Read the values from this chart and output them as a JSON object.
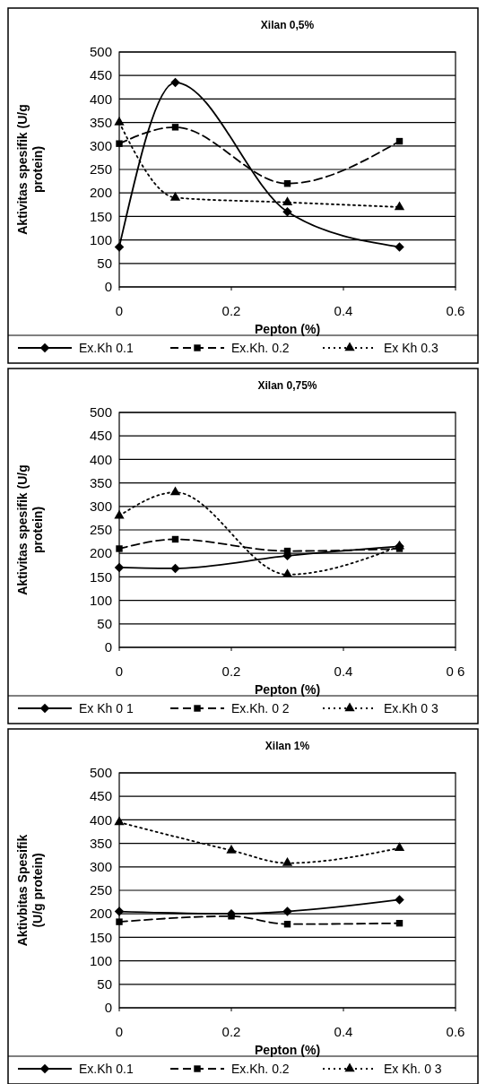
{
  "chart_data": [
    {
      "type": "line",
      "title": "Xilan 0,5%",
      "xlabel": "Pepton (%)",
      "ylabel": "Aktivitas spesifik (U/g protein)",
      "x": [
        0,
        0.1,
        0.3,
        0.5
      ],
      "xlim": [
        0,
        0.6
      ],
      "xticks": [
        0,
        0.2,
        0.4,
        0.6
      ],
      "ylim": [
        0,
        500
      ],
      "yticks": [
        0,
        50,
        100,
        150,
        200,
        250,
        300,
        350,
        400,
        450,
        500
      ],
      "grid": "y",
      "legend": "bottom",
      "series": [
        {
          "name": "Ex.Kh 0.1",
          "color": "#000000",
          "marker": "diamond",
          "line_style": "solid",
          "values": [
            85,
            435,
            160,
            85
          ]
        },
        {
          "name": "Ex.Kh. 0.2",
          "color": "#000000",
          "marker": "square",
          "line_style": "dashed",
          "values": [
            305,
            340,
            220,
            310
          ]
        },
        {
          "name": "Ex Kh  0.3",
          "color": "#000000",
          "marker": "triangle",
          "line_style": "dotted",
          "values": [
            350,
            190,
            180,
            170
          ]
        }
      ]
    },
    {
      "type": "line",
      "title": "Xilan 0,75%",
      "xlabel": "Pepton (%)",
      "ylabel": "Aktivitas spesifik (U/g protein)",
      "x": [
        0,
        0.1,
        0.3,
        0.5
      ],
      "xlim": [
        0,
        0.6
      ],
      "xticks": [
        0,
        0.2,
        0.4,
        {
          "value": 0.6,
          "label": "0 6"
        }
      ],
      "ylim": [
        0,
        500
      ],
      "yticks": [
        0,
        50,
        100,
        150,
        200,
        250,
        300,
        350,
        400,
        450,
        500
      ],
      "grid": "y",
      "legend": "bottom",
      "series": [
        {
          "name": "Ex Kh 0 1",
          "color": "#000000",
          "marker": "diamond",
          "line_style": "solid",
          "values": [
            170,
            168,
            195,
            215
          ]
        },
        {
          "name": "Ex.Kh. 0 2",
          "color": "#000000",
          "marker": "square",
          "line_style": "dashed",
          "values": [
            210,
            230,
            205,
            210
          ]
        },
        {
          "name": "Ex.Kh 0 3",
          "color": "#000000",
          "marker": "triangle",
          "line_style": "dotted",
          "values": [
            280,
            330,
            155,
            215
          ]
        }
      ]
    },
    {
      "type": "line",
      "title": "Xilan 1%",
      "xlabel": "Pepton (%)",
      "ylabel": "Aktivbitas Spesifik (U/g protein)",
      "x": [
        0,
        0.2,
        0.3,
        0.5
      ],
      "xlim": [
        0,
        0.6
      ],
      "xticks": [
        0,
        0.2,
        0.4,
        0.6
      ],
      "ylim": [
        0,
        500
      ],
      "yticks": [
        0,
        50,
        100,
        150,
        200,
        250,
        300,
        350,
        400,
        450,
        500
      ],
      "grid": "y",
      "legend": "bottom",
      "series": [
        {
          "name": "Ex.Kh 0.1",
          "color": "#000000",
          "marker": "diamond",
          "line_style": "solid",
          "values": [
            205,
            200,
            205,
            230
          ]
        },
        {
          "name": "Ex.Kh. 0.2",
          "color": "#000000",
          "marker": "square",
          "line_style": "dashed",
          "values": [
            183,
            195,
            178,
            180
          ]
        },
        {
          "name": "Ex Kh. 0 3",
          "color": "#000000",
          "marker": "triangle",
          "line_style": "dotted",
          "values": [
            395,
            335,
            308,
            340
          ]
        }
      ]
    }
  ]
}
